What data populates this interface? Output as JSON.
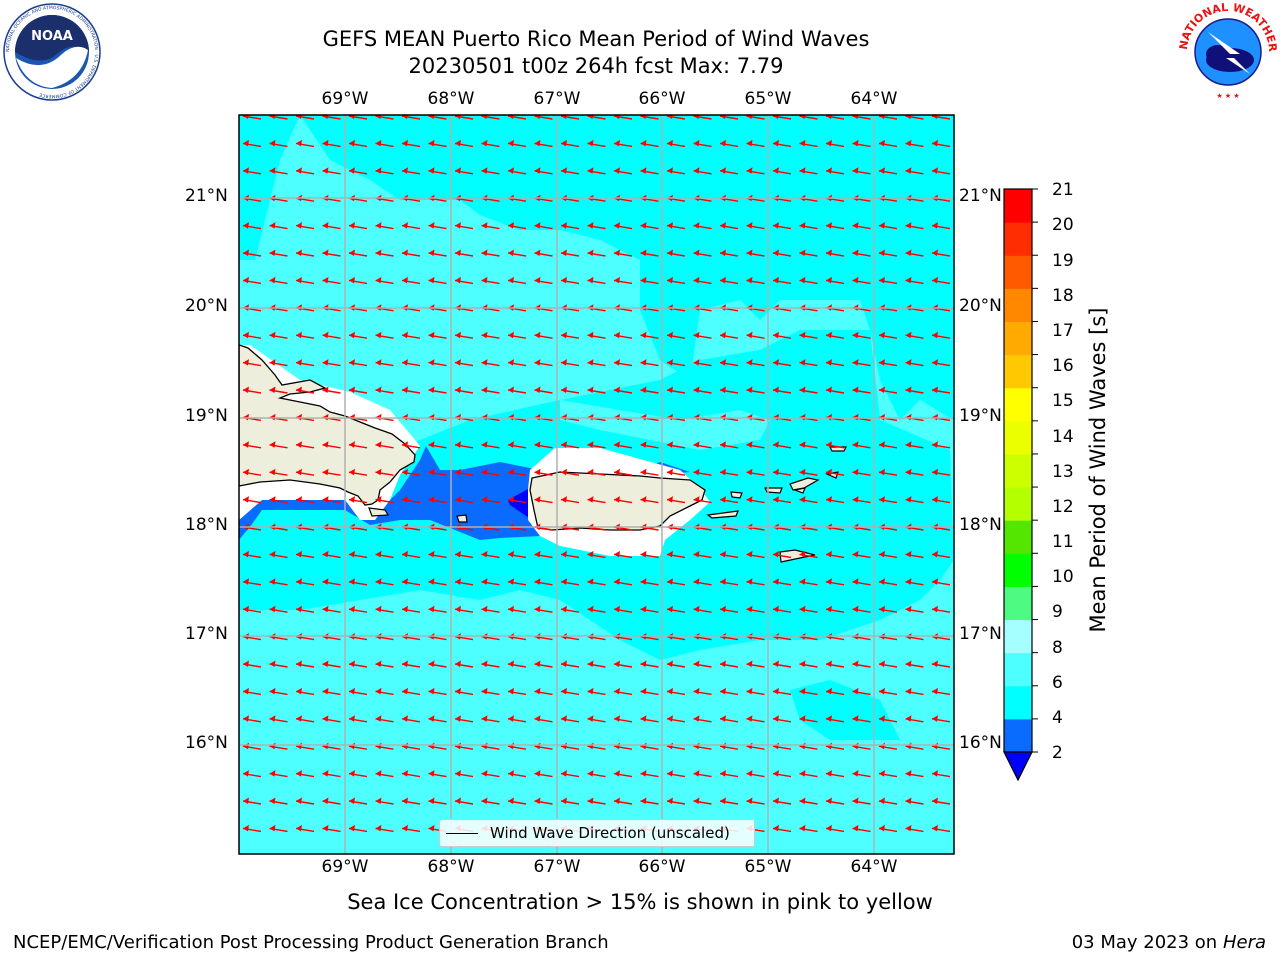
{
  "header": {
    "title_line1": "GEFS MEAN Puerto Rico Mean Period of Wind Waves",
    "title_line2": "20230501 t00z 264h fcst   Max: 7.79"
  },
  "logos": {
    "left": {
      "name": "NOAA",
      "ring_text": "NATIONAL OCEANIC AND ATMOSPHERIC ADMINISTRATION · U.S. DEPARTMENT OF COMMERCE"
    },
    "right": {
      "name": "NATIONAL WEATHER SERVICE"
    }
  },
  "map": {
    "lon_labels": [
      "69°W",
      "68°W",
      "67°W",
      "66°W",
      "65°W",
      "64°W"
    ],
    "lat_labels": [
      "21°N",
      "20°N",
      "19°N",
      "18°N",
      "17°N",
      "16°N"
    ],
    "legend_text": "Wind Wave Direction (unscaled)",
    "arrow_color": "#ff0000",
    "land_color": "#eeeedd"
  },
  "colorbar": {
    "title": "Mean Period of Wind Waves [s]",
    "tick_labels": [
      "2",
      "4",
      "6",
      "8",
      "9",
      "10",
      "11",
      "12",
      "13",
      "14",
      "15",
      "16",
      "17",
      "18",
      "19",
      "20",
      "21"
    ],
    "extend_color": "#0000ff",
    "colors": [
      "#0a6bff",
      "#00ffff",
      "#4dffff",
      "#a6ffff",
      "#4dfa82",
      "#00ff00",
      "#55e600",
      "#b4ff00",
      "#ccff00",
      "#ebff00",
      "#ffff00",
      "#ffc800",
      "#ffaa00",
      "#ff8800",
      "#ff5a00",
      "#ff2d00",
      "#ff0000"
    ]
  },
  "footer": {
    "note": "Sea Ice Concentration > 15% is shown in pink to yellow",
    "left": "NCEP/EMC/Verification Post Processing Product Generation Branch",
    "right_date": "03 May 2023 on",
    "right_machine": "Hera"
  }
}
